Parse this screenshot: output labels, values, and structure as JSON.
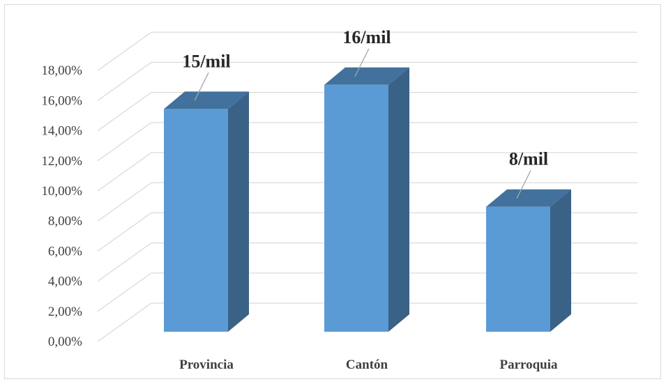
{
  "chart_data": {
    "type": "bar",
    "style": "3d-column",
    "categories": [
      "Provincia",
      "Cantón",
      "Parroquia"
    ],
    "values": [
      0.148,
      0.164,
      0.083
    ],
    "data_labels": [
      "15/mil",
      "16/mil",
      "8/mil"
    ],
    "yticks": [
      "0,00%",
      "2,00%",
      "4,00%",
      "6,00%",
      "8,00%",
      "10,00%",
      "12,00%",
      "14,00%",
      "16,00%",
      "18,00%"
    ],
    "ylim": [
      0,
      0.18
    ],
    "title": "",
    "xlabel": "",
    "ylabel": "",
    "grid": true,
    "legend": "none",
    "colors": {
      "bar_front": "#5b9bd5",
      "bar_top": "#41719c",
      "bar_side": "#3a6287",
      "gridline": "#d9d9d9",
      "text": "#404040"
    }
  }
}
